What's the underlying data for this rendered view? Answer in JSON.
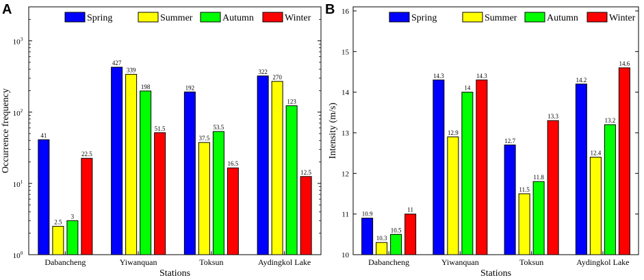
{
  "chart_data": [
    {
      "panel": "A",
      "type": "bar",
      "scale": "log",
      "categories": [
        "Dabancheng",
        "Yiwanquan",
        "Toksun",
        "Aydingkol Lake"
      ],
      "series": [
        {
          "name": "Spring",
          "color": "#0000ff",
          "values": [
            41,
            427,
            192,
            322
          ],
          "labels": [
            "41",
            "427",
            "192",
            "322"
          ]
        },
        {
          "name": "Summer",
          "color": "#ffff00",
          "values": [
            2.5,
            339,
            37.5,
            270
          ],
          "labels": [
            "2.5",
            "339",
            "37.5",
            "270"
          ]
        },
        {
          "name": "Autumn",
          "color": "#00ff00",
          "values": [
            3,
            198,
            53.5,
            123
          ],
          "labels": [
            "3",
            "198",
            "53.5",
            "123"
          ]
        },
        {
          "name": "Winter",
          "color": "#ff0000",
          "values": [
            22.5,
            51.5,
            16.5,
            12.5
          ],
          "labels": [
            "22.5",
            "51.5",
            "16.5",
            "12.5"
          ]
        }
      ],
      "xlabel": "Stations",
      "ylabel": "Occurrence frequency",
      "ylim": [
        1,
        3000
      ],
      "yticks": [
        1,
        10,
        100,
        1000
      ],
      "ytick_labels": [
        {
          "base": "10",
          "exp": "0"
        },
        {
          "base": "10",
          "exp": "1"
        },
        {
          "base": "10",
          "exp": "2"
        },
        {
          "base": "10",
          "exp": "3"
        }
      ],
      "legend": "top"
    },
    {
      "panel": "B",
      "type": "bar",
      "scale": "linear",
      "categories": [
        "Dabancheng",
        "Yiwanquan",
        "Toksun",
        "Aydingkol Lake"
      ],
      "series": [
        {
          "name": "Spring",
          "color": "#0000ff",
          "values": [
            10.9,
            14.3,
            12.7,
            14.2
          ],
          "labels": [
            "10.9",
            "14.3",
            "12.7",
            "14.2"
          ]
        },
        {
          "name": "Summer",
          "color": "#ffff00",
          "values": [
            10.3,
            12.9,
            11.5,
            12.4
          ],
          "labels": [
            "10.3",
            "12.9",
            "11.5",
            "12.4"
          ]
        },
        {
          "name": "Autumn",
          "color": "#00ff00",
          "values": [
            10.5,
            14,
            11.8,
            13.2
          ],
          "labels": [
            "10.5",
            "14",
            "11.8",
            "13.2"
          ]
        },
        {
          "name": "Winter",
          "color": "#ff0000",
          "values": [
            11,
            14.3,
            13.3,
            14.6
          ],
          "labels": [
            "11",
            "14.3",
            "13.3",
            "14.6"
          ]
        }
      ],
      "xlabel": "Stations",
      "ylabel": "Intensity (m/s)",
      "ylim": [
        10,
        16.1
      ],
      "yticks": [
        10,
        11,
        12,
        13,
        14,
        15,
        16
      ],
      "ytick_labels": [
        "10",
        "11",
        "12",
        "13",
        "14",
        "15",
        "16"
      ],
      "legend": "top"
    }
  ]
}
